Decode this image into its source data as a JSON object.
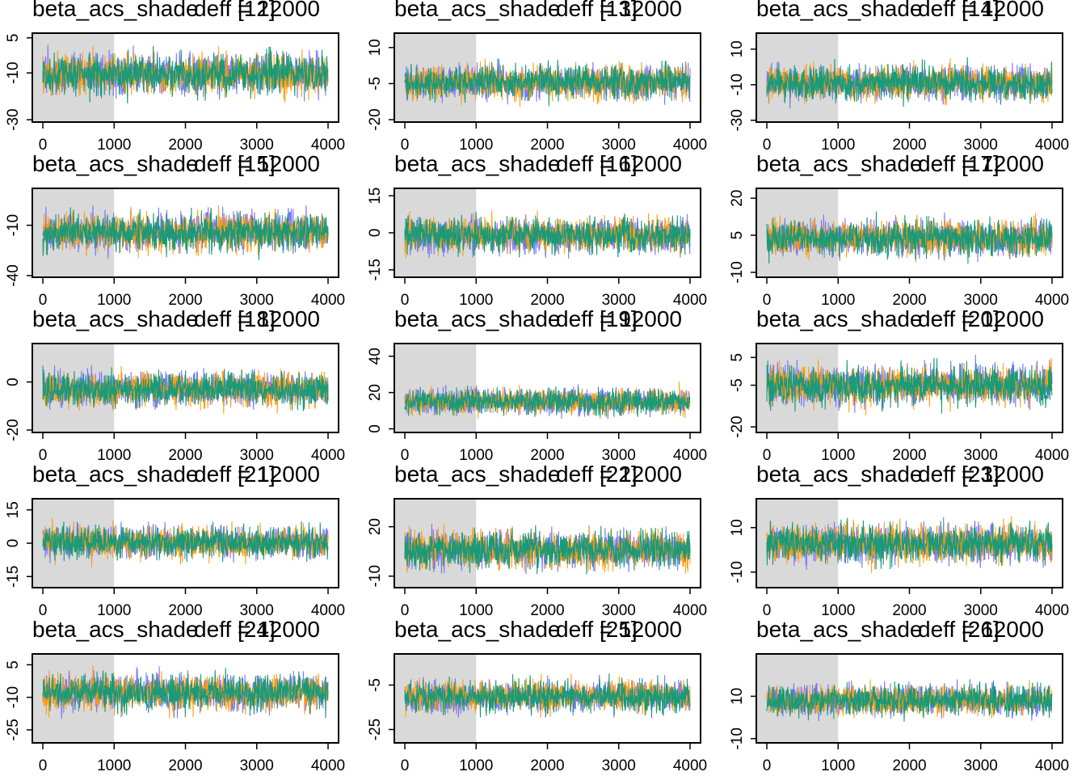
{
  "colors": {
    "chain1": "#6b6bff",
    "chain2": "#ff9900",
    "chain3": "#1a9a78",
    "warmup_shade": "#d9d9d9"
  },
  "chart_data": [
    {
      "type": "line",
      "title_left": "beta_acs_shade",
      "title_mid": "deff",
      "title_right": "= 12000",
      "param_index": "[12]",
      "xlim": [
        0,
        4000
      ],
      "warmup_end": 1000,
      "xticks": [
        0,
        1000,
        2000,
        3000,
        4000
      ],
      "ylim": [
        -31,
        7
      ],
      "yticks": [
        -30,
        -10,
        5
      ],
      "center": -10.5,
      "spread": 6.0
    },
    {
      "type": "line",
      "title_left": "beta_acs_shade",
      "title_mid": "deff",
      "title_right": "= 12000",
      "param_index": "[13]",
      "xlim": [
        0,
        4000
      ],
      "warmup_end": 1000,
      "xticks": [
        0,
        1000,
        2000,
        3000,
        4000
      ],
      "ylim": [
        -21,
        16
      ],
      "yticks": [
        -20,
        -5,
        10
      ],
      "center": -4.5,
      "spread": 5.0
    },
    {
      "type": "line",
      "title_left": "beta_acs_shade",
      "title_mid": "deff",
      "title_right": "= 12000",
      "param_index": "[14]",
      "xlim": [
        0,
        4000
      ],
      "warmup_end": 1000,
      "xticks": [
        0,
        1000,
        2000,
        3000,
        4000
      ],
      "ylim": [
        -31,
        19
      ],
      "yticks": [
        -30,
        -10,
        10
      ],
      "center": -9.0,
      "spread": 7.0
    },
    {
      "type": "line",
      "title_left": "beta_acs_shade",
      "title_mid": "deff",
      "title_right": "= 12000",
      "param_index": "[15]",
      "xlim": [
        0,
        4000
      ],
      "warmup_end": 1000,
      "xticks": [
        0,
        1000,
        2000,
        3000,
        4000
      ],
      "ylim": [
        -41,
        12
      ],
      "yticks": [
        -40,
        -10
      ],
      "center": -14.0,
      "spread": 8.0
    },
    {
      "type": "line",
      "title_left": "beta_acs_shade",
      "title_mid": "deff",
      "title_right": "= 12000",
      "param_index": "[16]",
      "xlim": [
        0,
        4000
      ],
      "warmup_end": 1000,
      "xticks": [
        0,
        1000,
        2000,
        3000,
        4000
      ],
      "ylim": [
        -18,
        18
      ],
      "yticks": [
        -15,
        0,
        15
      ],
      "center": -1.0,
      "spread": 5.0
    },
    {
      "type": "line",
      "title_left": "beta_acs_shade",
      "title_mid": "deff",
      "title_right": "= 12000",
      "param_index": "[17]",
      "xlim": [
        0,
        4000
      ],
      "warmup_end": 1000,
      "xticks": [
        0,
        1000,
        2000,
        3000,
        4000
      ],
      "ylim": [
        -12,
        24
      ],
      "yticks": [
        -10,
        5,
        20
      ],
      "center": 4.0,
      "spread": 5.0
    },
    {
      "type": "line",
      "title_left": "beta_acs_shade",
      "title_mid": "deff",
      "title_right": "= 12000",
      "param_index": "[18]",
      "xlim": [
        0,
        4000
      ],
      "warmup_end": 1000,
      "xticks": [
        0,
        1000,
        2000,
        3000,
        4000
      ],
      "ylim": [
        -21,
        16
      ],
      "yticks": [
        -20,
        0
      ],
      "center": -3.0,
      "spread": 5.0
    },
    {
      "type": "line",
      "title_left": "beta_acs_shade",
      "title_mid": "deff",
      "title_right": "= 12000",
      "param_index": "[19]",
      "xlim": [
        0,
        4000
      ],
      "warmup_end": 1000,
      "xticks": [
        0,
        1000,
        2000,
        3000,
        4000
      ],
      "ylim": [
        -2,
        47
      ],
      "yticks": [
        0,
        20,
        40
      ],
      "center": 15.0,
      "spread": 5.0
    },
    {
      "type": "line",
      "title_left": "beta_acs_shade",
      "title_mid": "deff",
      "title_right": "= 12000",
      "param_index": "[20]",
      "xlim": [
        0,
        4000
      ],
      "warmup_end": 1000,
      "xticks": [
        0,
        1000,
        2000,
        3000,
        4000
      ],
      "ylim": [
        -22,
        10
      ],
      "yticks": [
        -20,
        -5,
        5
      ],
      "center": -5.0,
      "spread": 5.0
    },
    {
      "type": "line",
      "title_left": "beta_acs_shade",
      "title_mid": "deff",
      "title_right": "= 12000",
      "param_index": "[21]",
      "xlim": [
        0,
        4000
      ],
      "warmup_end": 1000,
      "xticks": [
        0,
        1000,
        2000,
        3000,
        4000
      ],
      "ylim": [
        -20,
        20
      ],
      "yticks": [
        -15,
        0,
        15
      ],
      "center": 0.5,
      "spread": 5.0
    },
    {
      "type": "line",
      "title_left": "beta_acs_shade",
      "title_mid": "deff",
      "title_right": "= 12000",
      "param_index": "[22]",
      "xlim": [
        0,
        4000
      ],
      "warmup_end": 1000,
      "xticks": [
        0,
        1000,
        2000,
        3000,
        4000
      ],
      "ylim": [
        -17,
        37
      ],
      "yticks": [
        -10,
        20
      ],
      "center": 6.0,
      "spread": 8.0
    },
    {
      "type": "line",
      "title_left": "beta_acs_shade",
      "title_mid": "deff",
      "title_right": "= 12000",
      "param_index": "[23]",
      "xlim": [
        0,
        4000
      ],
      "warmup_end": 1000,
      "xticks": [
        0,
        1000,
        2000,
        3000,
        4000
      ],
      "ylim": [
        -17,
        23
      ],
      "yticks": [
        -10,
        10
      ],
      "center": 3.0,
      "spread": 6.0
    },
    {
      "type": "line",
      "title_left": "beta_acs_shade",
      "title_mid": "deff",
      "title_right": "= 12000",
      "param_index": "[24]",
      "xlim": [
        0,
        4000
      ],
      "warmup_end": 1000,
      "xticks": [
        0,
        1000,
        2000,
        3000,
        4000
      ],
      "ylim": [
        -31,
        10
      ],
      "yticks": [
        -25,
        -10,
        5
      ],
      "center": -8.0,
      "spread": 6.0
    },
    {
      "type": "line",
      "title_left": "beta_acs_shade",
      "title_mid": "deff",
      "title_right": "= 12000",
      "param_index": "[25]",
      "xlim": [
        0,
        4000
      ],
      "warmup_end": 1000,
      "xticks": [
        0,
        1000,
        2000,
        3000,
        4000
      ],
      "ylim": [
        -31,
        9
      ],
      "yticks": [
        -25,
        -5
      ],
      "center": -10.0,
      "spread": 5.0
    },
    {
      "type": "line",
      "title_left": "beta_acs_shade",
      "title_mid": "deff",
      "title_right": "= 12000",
      "param_index": "[26]",
      "xlim": [
        0,
        4000
      ],
      "warmup_end": 1000,
      "xticks": [
        0,
        1000,
        2000,
        3000,
        4000
      ],
      "ylim": [
        -12,
        30
      ],
      "yticks": [
        -10,
        10
      ],
      "center": 8.0,
      "spread": 5.0
    }
  ]
}
